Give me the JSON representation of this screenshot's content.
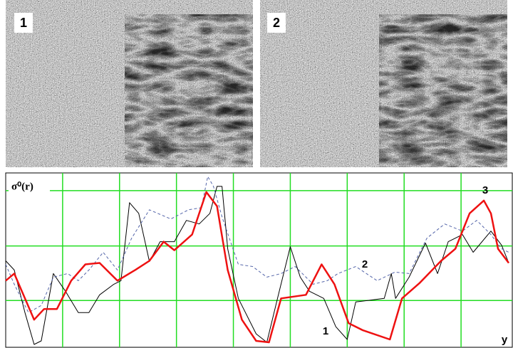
{
  "images": [
    "1",
    "2"
  ],
  "chart_data": {
    "type": "line",
    "ylabel": "σ⁰(r)",
    "xlabel": "y",
    "xlim": [
      0,
      712
    ],
    "ylim": [
      0,
      246
    ],
    "xgrid": [
      80,
      160,
      240,
      320,
      400,
      480,
      560,
      640
    ],
    "ygrid": [
      66,
      143,
      221
    ],
    "grid_color": "#22dd22",
    "series": [
      {
        "name": "1",
        "color": "#000000",
        "width": 1,
        "dash": false,
        "x": [
          0,
          12,
          27,
          40,
          50,
          67,
          84,
          102,
          117,
          132,
          152,
          162,
          174,
          187,
          202,
          217,
          237,
          254,
          272,
          287,
          297,
          304,
          312,
          327,
          352,
          367,
          382,
          400,
          414,
          427,
          447,
          464,
          480,
          492,
          532,
          542,
          548,
          567,
          590,
          607,
          622,
          642,
          657,
          682,
          697,
          707
        ],
        "values": [
          122,
          109,
          49,
          4,
          9,
          104,
          79,
          49,
          49,
          74,
          89,
          94,
          204,
          189,
          121,
          149,
          149,
          179,
          174,
          189,
          227,
          227,
          139,
          69,
          19,
          7,
          69,
          142,
          99,
          79,
          69,
          29,
          11,
          64,
          69,
          104,
          69,
          99,
          147,
          104,
          149,
          159,
          134,
          164,
          144,
          119
        ]
      },
      {
        "name": "2",
        "color": "#5566aa",
        "width": 1,
        "dash": true,
        "x": [
          0,
          12,
          32,
          50,
          67,
          87,
          102,
          117,
          137,
          157,
          177,
          202,
          232,
          257,
          275,
          284,
          292,
          304,
          327,
          347,
          367,
          387,
          407,
          432,
          452,
          467,
          492,
          522,
          547,
          567,
          592,
          617,
          642,
          662,
          682,
          697,
          707
        ],
        "values": [
          117,
          89,
          49,
          59,
          99,
          104,
          94,
          109,
          134,
          109,
          154,
          194,
          181,
          194,
          197,
          241,
          227,
          184,
          117,
          114,
          99,
          104,
          114,
          89,
          94,
          104,
          114,
          94,
          106,
          104,
          154,
          174,
          164,
          179,
          159,
          139,
          134
        ]
      },
      {
        "name": "3",
        "color": "#ee1111",
        "width": 2.5,
        "dash": false,
        "x": [
          0,
          12,
          27,
          40,
          54,
          72,
          92,
          112,
          132,
          157,
          182,
          202,
          222,
          237,
          262,
          282,
          297,
          312,
          332,
          352,
          370,
          387,
          422,
          444,
          462,
          482,
          502,
          540,
          557,
          582,
          612,
          632,
          652,
          672,
          682,
          692,
          707
        ],
        "values": [
          94,
          104,
          69,
          39,
          54,
          54,
          94,
          117,
          119,
          94,
          109,
          122,
          149,
          137,
          159,
          219,
          199,
          109,
          39,
          9,
          7,
          69,
          74,
          117,
          89,
          34,
          24,
          11,
          69,
          91,
          122,
          139,
          189,
          207,
          189,
          139,
          119
        ]
      }
    ]
  }
}
